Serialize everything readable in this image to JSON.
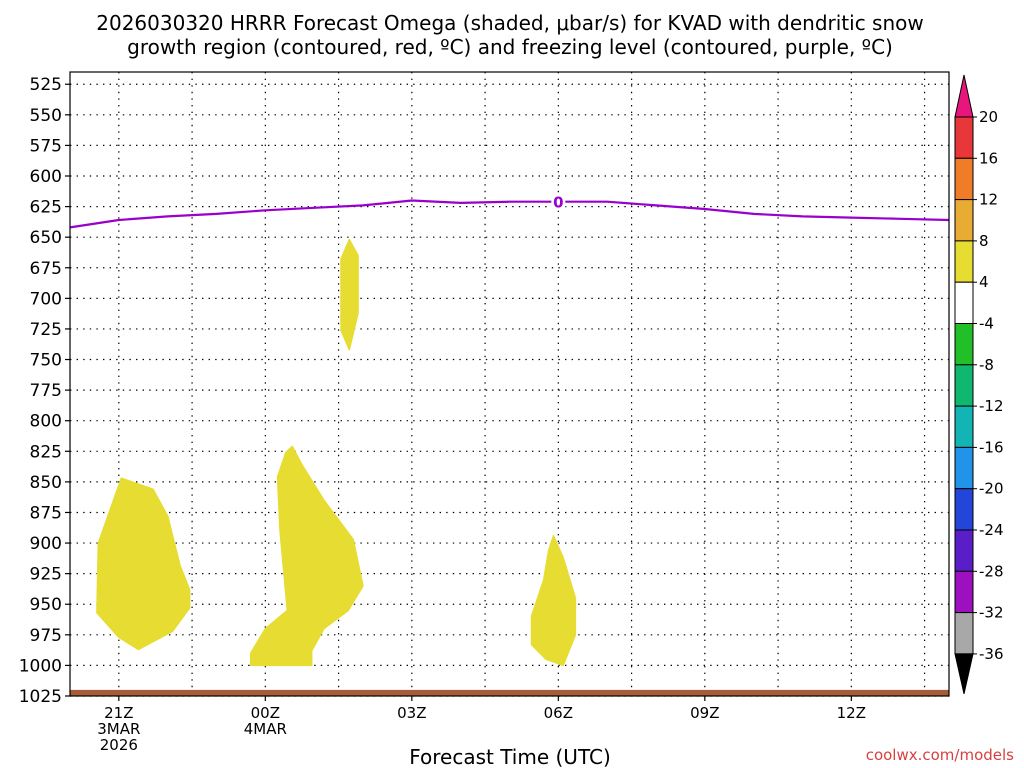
{
  "chart_data": {
    "type": "time-height",
    "title_line1": "2026030320 HRRR Forecast Omega (shaded, μbar/s) for KVAD with dendritic snow",
    "title_line2": "growth region (contoured, red, ºC) and freezing level (contoured, purple, ºC)",
    "xlabel": "Forecast Time (UTC)",
    "credit": "coolwx.com/models",
    "xlim": [
      -1,
      17
    ],
    "ylim": [
      1025,
      515
    ],
    "y_ticks": [
      525,
      550,
      575,
      600,
      625,
      650,
      675,
      700,
      725,
      750,
      775,
      800,
      825,
      850,
      875,
      900,
      925,
      950,
      975,
      1000,
      1025
    ],
    "x_ticks": [
      {
        "h": 0,
        "lines": [
          "21Z",
          "3MAR",
          "2026"
        ]
      },
      {
        "h": 3,
        "lines": [
          "00Z",
          "4MAR"
        ]
      },
      {
        "h": 6,
        "lines": [
          "03Z"
        ]
      },
      {
        "h": 9,
        "lines": [
          "06Z"
        ]
      },
      {
        "h": 12,
        "lines": [
          "09Z"
        ]
      },
      {
        "h": 15,
        "lines": [
          "12Z"
        ]
      }
    ],
    "freezing_level": {
      "label": "0",
      "label_hour": 9.0,
      "color": "#9900cc",
      "points": [
        [
          -1,
          642
        ],
        [
          0,
          636
        ],
        [
          1,
          633
        ],
        [
          2,
          631
        ],
        [
          3,
          628
        ],
        [
          4,
          626
        ],
        [
          5,
          624
        ],
        [
          6,
          620
        ],
        [
          7,
          622
        ],
        [
          8,
          621
        ],
        [
          9,
          621
        ],
        [
          10,
          621
        ],
        [
          11,
          624
        ],
        [
          12,
          627
        ],
        [
          13,
          631
        ],
        [
          14,
          633
        ],
        [
          15,
          634
        ],
        [
          16,
          635
        ],
        [
          17,
          636
        ]
      ]
    },
    "omega_regions": [
      {
        "value_band": "4 to 8",
        "color": "#e6dc32",
        "points": [
          [
            4.72,
            652
          ],
          [
            4.9,
            665
          ],
          [
            4.9,
            712
          ],
          [
            4.72,
            742
          ],
          [
            4.55,
            726
          ],
          [
            4.55,
            668
          ]
        ]
      },
      {
        "value_band": "4 to 8",
        "color": "#e6dc32",
        "points": [
          [
            0.05,
            847
          ],
          [
            0.7,
            856
          ],
          [
            1.0,
            878
          ],
          [
            1.25,
            918
          ],
          [
            1.45,
            938
          ],
          [
            1.45,
            953
          ],
          [
            1.1,
            972
          ],
          [
            0.4,
            987
          ],
          [
            0,
            977
          ],
          [
            -0.45,
            957
          ],
          [
            -0.42,
            900
          ]
        ]
      },
      {
        "value_band": "4 to 8",
        "color": "#e6dc32",
        "points": [
          [
            3.55,
            821
          ],
          [
            3.75,
            836
          ],
          [
            4.2,
            865
          ],
          [
            4.8,
            897
          ],
          [
            5.0,
            935
          ],
          [
            4.7,
            955
          ],
          [
            4.2,
            970
          ],
          [
            3.95,
            988
          ],
          [
            3.95,
            1000
          ],
          [
            2.7,
            1000
          ],
          [
            2.7,
            990
          ],
          [
            3.0,
            970
          ],
          [
            3.45,
            955
          ],
          [
            3.3,
            890
          ],
          [
            3.25,
            846
          ],
          [
            3.42,
            826
          ]
        ]
      },
      {
        "value_band": "4 to 8",
        "color": "#e6dc32",
        "points": [
          [
            8.9,
            894
          ],
          [
            9.1,
            912
          ],
          [
            9.35,
            945
          ],
          [
            9.35,
            975
          ],
          [
            9.1,
            1000
          ],
          [
            8.75,
            995
          ],
          [
            8.45,
            983
          ],
          [
            8.45,
            960
          ],
          [
            8.7,
            930
          ],
          [
            8.8,
            906
          ]
        ]
      }
    ],
    "terrain": {
      "color": "#a65c38",
      "level_hPa": 1020
    },
    "colorbar": {
      "labels": [
        20,
        16,
        12,
        8,
        4,
        -4,
        -8,
        -12,
        -16,
        -20,
        -24,
        -28,
        -32,
        -36
      ],
      "top_triangle_color": "#e8157d",
      "bottom_triangle_color": "#000000",
      "segments": [
        {
          "color": "#e8373a"
        },
        {
          "color": "#f07c28"
        },
        {
          "color": "#e8ac35"
        },
        {
          "color": "#e6dc32"
        },
        {
          "color": "#ffffff"
        },
        {
          "color": "#21c028"
        },
        {
          "color": "#0fb86e"
        },
        {
          "color": "#12b4b4"
        },
        {
          "color": "#2193e8"
        },
        {
          "color": "#2345d8"
        },
        {
          "color": "#5a1ec8"
        },
        {
          "color": "#9c10c0"
        },
        {
          "color": "#a8a8a8"
        }
      ]
    }
  }
}
